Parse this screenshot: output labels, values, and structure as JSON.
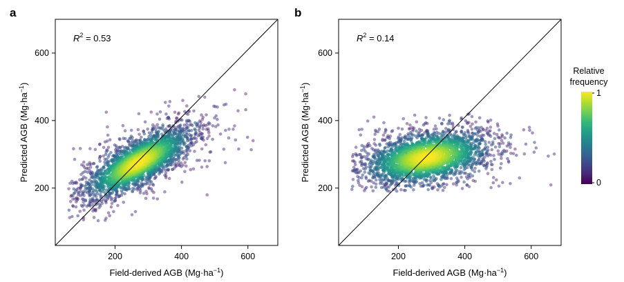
{
  "colors": {
    "viridis": [
      "#440154",
      "#482878",
      "#3e4989",
      "#31688e",
      "#26828e",
      "#1f9e89",
      "#35b779",
      "#6ece58",
      "#b5de2b",
      "#fde725"
    ],
    "point": "#6b3f8f",
    "axis": "#000000"
  },
  "colorbar": {
    "title_line1": "Relative",
    "title_line2": "frequency",
    "max_label": "1",
    "min_label": "0"
  },
  "chart_data": [
    {
      "type": "scatter",
      "panel": "a",
      "annotation": {
        "r2_prefix": "R",
        "r2_sup": "2",
        "r2_value": " = 0.53"
      },
      "xlabel": {
        "text": "Field-derived AGB (Mg·ha",
        "sup": "−1",
        "close": ")"
      },
      "ylabel": {
        "text": "Predicted AGB (Mg·ha",
        "sup": "−1",
        "close": ")"
      },
      "xlim": [
        20,
        690
      ],
      "ylim": [
        30,
        700
      ],
      "xticks": [
        200,
        400,
        600
      ],
      "yticks": [
        200,
        400,
        600
      ],
      "identity_line": true,
      "density": {
        "center": [
          270,
          275
        ],
        "sd_x": 80,
        "sd_y": 52,
        "corr": 0.75,
        "n_points": 2600,
        "x_range": [
          60,
          680
        ],
        "y_range": [
          100,
          500
        ]
      }
    },
    {
      "type": "scatter",
      "panel": "b",
      "annotation": {
        "r2_prefix": "R",
        "r2_sup": "2",
        "r2_value": " = 0.14"
      },
      "xlabel": {
        "text": "Field-derived AGB (Mg·ha",
        "sup": "−1",
        "close": ")"
      },
      "ylabel": {
        "text": "Predicted AGB (Mg·ha",
        "sup": "−1",
        "close": ")"
      },
      "xlim": [
        20,
        690
      ],
      "ylim": [
        30,
        700
      ],
      "xticks": [
        200,
        400,
        600
      ],
      "yticks": [
        200,
        400,
        600
      ],
      "identity_line": true,
      "density": {
        "center": [
          285,
          290
        ],
        "sd_x": 95,
        "sd_y": 40,
        "corr": 0.35,
        "n_points": 2600,
        "x_range": [
          60,
          680
        ],
        "y_range": [
          190,
          420
        ]
      }
    }
  ]
}
